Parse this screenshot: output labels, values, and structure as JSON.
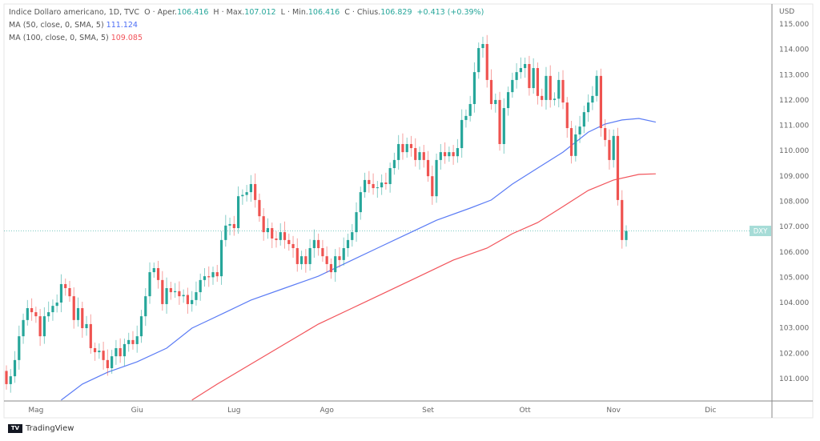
{
  "header": {
    "symbol": "Indice Dollaro americano, 1D, TVC",
    "open_label": "O · Aper.",
    "open": "106.416",
    "high_label": "H · Max.",
    "high": "107.012",
    "low_label": "L · Min.",
    "low": "106.416",
    "close_label": "C · Chius.",
    "close": "106.829",
    "change": "+0.413 (+0.39%)",
    "ma50_label": "MA (50, close, 0, SMA, 5)",
    "ma50_value": "111.124",
    "ma100_label": "MA (100, close, 0, SMA, 5)",
    "ma100_value": "109.085"
  },
  "footer": {
    "brand": "TradingView"
  },
  "colors": {
    "up": "#26a69a",
    "down": "#ef5350",
    "ma50": "#5b7cf5",
    "ma100": "#f2545b"
  },
  "chart_data": {
    "type": "candlestick",
    "currency_label": "USD",
    "price_tag": "DXY",
    "last_price": 106.829,
    "ylim": [
      100.2,
      115.2
    ],
    "y_ticks": [
      "115.000",
      "114.000",
      "113.000",
      "112.000",
      "111.000",
      "110.000",
      "109.000",
      "108.000",
      "107.000",
      "106.000",
      "105.000",
      "104.000",
      "103.000",
      "102.000",
      "101.000"
    ],
    "x_ticks": [
      {
        "label": "Mag",
        "index": 7
      },
      {
        "label": "Giu",
        "index": 31
      },
      {
        "label": "Lug",
        "index": 54
      },
      {
        "label": "Ago",
        "index": 76
      },
      {
        "label": "Set",
        "index": 100
      },
      {
        "label": "Ott",
        "index": 123
      },
      {
        "label": "Nov",
        "index": 144
      },
      {
        "label": "Dic",
        "index": 167
      }
    ],
    "first_open": 101.3,
    "closes": [
      100.78,
      101.09,
      101.73,
      102.67,
      103.31,
      103.78,
      103.62,
      103.46,
      102.67,
      103.46,
      103.62,
      103.87,
      104.0,
      104.73,
      104.57,
      104.25,
      103.31,
      103.78,
      102.99,
      103.15,
      102.2,
      102.04,
      102.1,
      101.73,
      101.41,
      101.88,
      102.2,
      101.88,
      102.36,
      102.52,
      102.36,
      102.67,
      103.46,
      104.25,
      105.2,
      105.36,
      104.89,
      103.94,
      104.57,
      104.41,
      104.45,
      104.25,
      104.3,
      103.94,
      104.1,
      104.41,
      104.89,
      105.04,
      105.0,
      105.2,
      105.04,
      106.47,
      107.04,
      107.1,
      106.94,
      108.2,
      108.25,
      108.36,
      108.68,
      108.05,
      107.41,
      106.78,
      106.94,
      106.53,
      106.47,
      106.78,
      106.47,
      106.31,
      106.15,
      105.52,
      105.83,
      105.52,
      106.15,
      106.47,
      106.15,
      105.83,
      105.52,
      105.2,
      105.83,
      105.68,
      106.15,
      106.47,
      106.78,
      107.57,
      108.36,
      108.84,
      108.68,
      108.52,
      108.55,
      108.74,
      108.68,
      109.31,
      109.63,
      110.26,
      109.94,
      110.26,
      110.1,
      109.63,
      109.94,
      109.63,
      108.99,
      108.2,
      109.63,
      109.94,
      109.78,
      109.94,
      109.78,
      110.1,
      111.21,
      111.37,
      111.84,
      113.1,
      114.05,
      114.21,
      112.79,
      111.84,
      112.0,
      110.26,
      111.68,
      112.31,
      112.79,
      113.1,
      113.26,
      113.42,
      112.47,
      113.26,
      112.16,
      112.0,
      112.95,
      112.0,
      112.05,
      112.79,
      111.9,
      110.89,
      109.79,
      110.64,
      110.95,
      111.52,
      111.9,
      112.16,
      112.95,
      110.89,
      110.42,
      109.63,
      110.58,
      108.05,
      106.47,
      106.83
    ],
    "series": [
      {
        "name": "MA (50, close, 0, SMA, 5)",
        "points": [
          [
            13,
            100.15
          ],
          [
            18,
            100.78
          ],
          [
            24,
            101.25
          ],
          [
            31,
            101.66
          ],
          [
            38,
            102.2
          ],
          [
            44,
            102.99
          ],
          [
            52,
            103.62
          ],
          [
            58,
            104.1
          ],
          [
            66,
            104.57
          ],
          [
            74,
            105.04
          ],
          [
            82,
            105.68
          ],
          [
            88,
            106.15
          ],
          [
            94,
            106.62
          ],
          [
            102,
            107.25
          ],
          [
            110,
            107.73
          ],
          [
            115,
            108.05
          ],
          [
            120,
            108.68
          ],
          [
            126,
            109.31
          ],
          [
            132,
            109.94
          ],
          [
            138,
            110.73
          ],
          [
            142,
            111.05
          ],
          [
            146,
            111.21
          ],
          [
            150,
            111.27
          ],
          [
            154,
            111.124
          ]
        ]
      },
      {
        "name": "MA (100, close, 0, SMA, 5)",
        "points": [
          [
            44,
            100.15
          ],
          [
            50,
            100.78
          ],
          [
            58,
            101.57
          ],
          [
            66,
            102.36
          ],
          [
            74,
            103.15
          ],
          [
            82,
            103.78
          ],
          [
            90,
            104.41
          ],
          [
            98,
            105.04
          ],
          [
            106,
            105.68
          ],
          [
            114,
            106.15
          ],
          [
            120,
            106.72
          ],
          [
            126,
            107.16
          ],
          [
            132,
            107.79
          ],
          [
            138,
            108.43
          ],
          [
            144,
            108.84
          ],
          [
            150,
            109.06
          ],
          [
            154,
            109.085
          ]
        ]
      }
    ]
  }
}
